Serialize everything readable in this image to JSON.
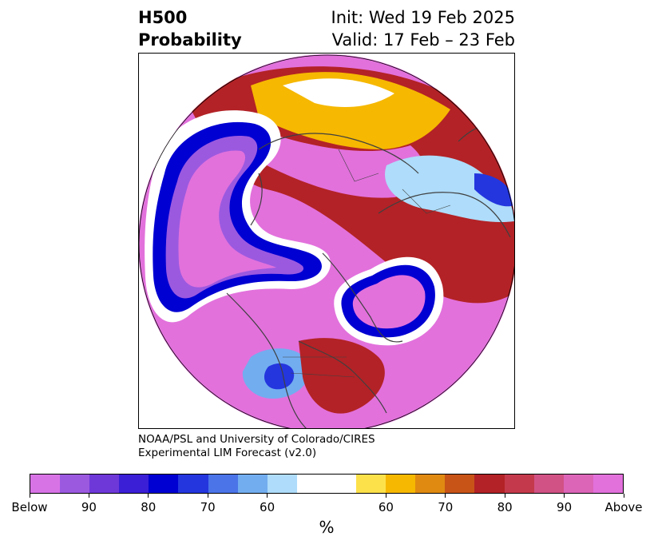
{
  "title": {
    "variable": "H500",
    "product": "Probability",
    "init": "Init: Wed 19 Feb 2025",
    "valid": "Valid: 17 Feb – 23 Feb"
  },
  "credit": {
    "line1": "NOAA/PSL and University of Colorado/CIRES",
    "line2": "Experimental LIM Forecast (v2.0)"
  },
  "colorbar": {
    "colors": [
      "#d873e6",
      "#9b59e0",
      "#6e38d8",
      "#3a1fd6",
      "#0000d2",
      "#2436de",
      "#4a74e8",
      "#72adf0",
      "#aedcfa",
      "#ffffff",
      "#ffffff",
      "#fde14a",
      "#f6b800",
      "#e08a12",
      "#c85418",
      "#b32226",
      "#c43a4c",
      "#d15285",
      "#dc65b8",
      "#e271dc"
    ],
    "labels": [
      "Below",
      "90",
      "80",
      "70",
      "60",
      "60",
      "70",
      "80",
      "90",
      "Above"
    ],
    "unit": "%"
  },
  "map": {
    "projection": "north polar stereographic",
    "colors": {
      "below_extreme": "#e271dc",
      "below_strong": "#3a1fd6",
      "below_mid": "#2436de",
      "below_weak": "#72adf0",
      "above_extreme": "#e271dc",
      "above_strong": "#b32226",
      "above_mid": "#f6b800",
      "above_weak": "#fde14a",
      "coast": "#404040"
    }
  }
}
